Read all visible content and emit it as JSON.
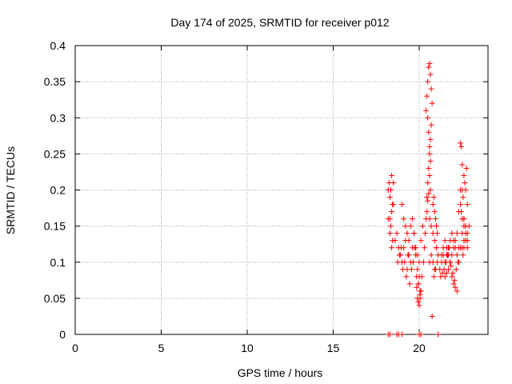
{
  "chart_data": {
    "type": "scatter",
    "title": "Day 174 of 2025, SRMTID for receiver p012",
    "xlabel": "GPS time / hours",
    "ylabel": "SRMTID / TECUs",
    "xlim": [
      0,
      24
    ],
    "ylim": [
      0,
      0.4
    ],
    "xticks": [
      0,
      5,
      10,
      15,
      20
    ],
    "xtick_labels": [
      "0",
      "5",
      "10",
      "15",
      "20"
    ],
    "yticks": [
      0,
      0.05,
      0.1,
      0.15,
      0.2,
      0.25,
      0.3,
      0.35,
      0.4
    ],
    "ytick_labels": [
      "0",
      "0.05",
      "0.1",
      "0.15",
      "0.2",
      "0.25",
      "0.3",
      "0.35",
      "0.4"
    ],
    "grid": true,
    "marker": "+",
    "series": [
      {
        "name": "SRMTID",
        "color": "#ff0000",
        "x": [
          18.2,
          18.25,
          18.3,
          18.35,
          18.4,
          18.45,
          18.5,
          18.3,
          18.4,
          18.35,
          18.2,
          18.3,
          18.45,
          18.5,
          18.4,
          18.6,
          18.7,
          18.8,
          18.9,
          19.0,
          19.1,
          19.2,
          19.3,
          19.4,
          19.5,
          19.6,
          19.7,
          19.8,
          19.9,
          20.0,
          18.75,
          18.85,
          18.95,
          19.05,
          19.15,
          19.25,
          19.35,
          19.45,
          19.55,
          19.65,
          19.75,
          19.85,
          19.95,
          20.05,
          19.0,
          19.1,
          19.2,
          19.3,
          19.4,
          19.5,
          19.6,
          19.7,
          19.8,
          19.9,
          20.0,
          20.1,
          20.2,
          19.9,
          19.95,
          20.0,
          20.05,
          20.1,
          19.85,
          19.95,
          20.05,
          20.15,
          20.25,
          20.3,
          20.35,
          20.4,
          20.45,
          20.5,
          20.55,
          20.6,
          20.65,
          20.7,
          20.4,
          20.45,
          20.5,
          20.55,
          20.6,
          20.65,
          20.7,
          20.75,
          20.5,
          20.55,
          20.6,
          20.65,
          20.6,
          20.65,
          20.5,
          20.55,
          20.45,
          20.6,
          20.7,
          20.8,
          20.9,
          21.0,
          20.8,
          20.85,
          20.9,
          20.95,
          21.0,
          21.05,
          20.7,
          20.8,
          20.9,
          21.0,
          21.1,
          20.75,
          20.85,
          20.95,
          21.05,
          20.6,
          21.2,
          21.3,
          21.4,
          21.5,
          21.6,
          21.7,
          21.8,
          21.9,
          22.0,
          22.1,
          22.2,
          22.3,
          21.25,
          21.35,
          21.45,
          21.55,
          21.65,
          21.75,
          21.85,
          21.95,
          22.05,
          22.15,
          22.25,
          21.3,
          21.4,
          21.5,
          21.6,
          21.7,
          21.8,
          21.9,
          22.0,
          22.1,
          22.2,
          21.5,
          21.6,
          21.7,
          21.8,
          21.9,
          22.0,
          22.1,
          22.2,
          22.3,
          22.4,
          22.5,
          22.6,
          22.7,
          22.8,
          22.4,
          22.5,
          22.6,
          22.7,
          22.8,
          22.45,
          22.55,
          22.65,
          22.75,
          22.5,
          22.6,
          22.7,
          22.4,
          22.45,
          22.5,
          22.6,
          22.5,
          22.55,
          22.6,
          22.7,
          22.8,
          22.9,
          22.3,
          22.4,
          22.6,
          22.7,
          22.8,
          18.2,
          18.3,
          18.7,
          18.8,
          19.0,
          20.0,
          20.1,
          21.1
        ],
        "y": [
          0.2,
          0.21,
          0.19,
          0.2,
          0.22,
          0.18,
          0.21,
          0.16,
          0.17,
          0.15,
          0.16,
          0.14,
          0.13,
          0.18,
          0.12,
          0.13,
          0.14,
          0.12,
          0.11,
          0.1,
          0.12,
          0.13,
          0.09,
          0.11,
          0.1,
          0.12,
          0.14,
          0.11,
          0.09,
          0.08,
          0.1,
          0.11,
          0.12,
          0.09,
          0.1,
          0.08,
          0.11,
          0.07,
          0.09,
          0.1,
          0.12,
          0.08,
          0.07,
          0.06,
          0.18,
          0.16,
          0.15,
          0.14,
          0.13,
          0.15,
          0.16,
          0.14,
          0.12,
          0.11,
          0.1,
          0.13,
          0.15,
          0.05,
          0.045,
          0.04,
          0.055,
          0.06,
          0.065,
          0.07,
          0.05,
          0.08,
          0.1,
          0.12,
          0.14,
          0.16,
          0.19,
          0.21,
          0.23,
          0.25,
          0.27,
          0.29,
          0.31,
          0.33,
          0.35,
          0.37,
          0.375,
          0.36,
          0.34,
          0.32,
          0.3,
          0.28,
          0.26,
          0.24,
          0.22,
          0.2,
          0.185,
          0.195,
          0.17,
          0.16,
          0.15,
          0.14,
          0.13,
          0.12,
          0.18,
          0.19,
          0.17,
          0.16,
          0.15,
          0.14,
          0.11,
          0.1,
          0.09,
          0.12,
          0.11,
          0.025,
          0.08,
          0.09,
          0.1,
          0.1,
          0.09,
          0.1,
          0.11,
          0.08,
          0.085,
          0.09,
          0.1,
          0.11,
          0.12,
          0.13,
          0.14,
          0.12,
          0.08,
          0.085,
          0.09,
          0.1,
          0.11,
          0.12,
          0.095,
          0.085,
          0.075,
          0.09,
          0.1,
          0.11,
          0.12,
          0.13,
          0.12,
          0.11,
          0.1,
          0.08,
          0.07,
          0.065,
          0.06,
          0.1,
          0.11,
          0.12,
          0.13,
          0.14,
          0.13,
          0.12,
          0.11,
          0.1,
          0.12,
          0.14,
          0.16,
          0.15,
          0.13,
          0.18,
          0.2,
          0.22,
          0.2,
          0.18,
          0.17,
          0.19,
          0.21,
          0.23,
          0.16,
          0.15,
          0.14,
          0.265,
          0.26,
          0.235,
          0.13,
          0.12,
          0.11,
          0.12,
          0.13,
          0.14,
          0.15,
          0.17,
          0.2,
          0.16,
          0.15,
          0.12,
          0.0,
          0.0,
          0.0,
          0.0,
          0.0,
          0.0,
          0.0,
          0.0
        ]
      }
    ]
  }
}
